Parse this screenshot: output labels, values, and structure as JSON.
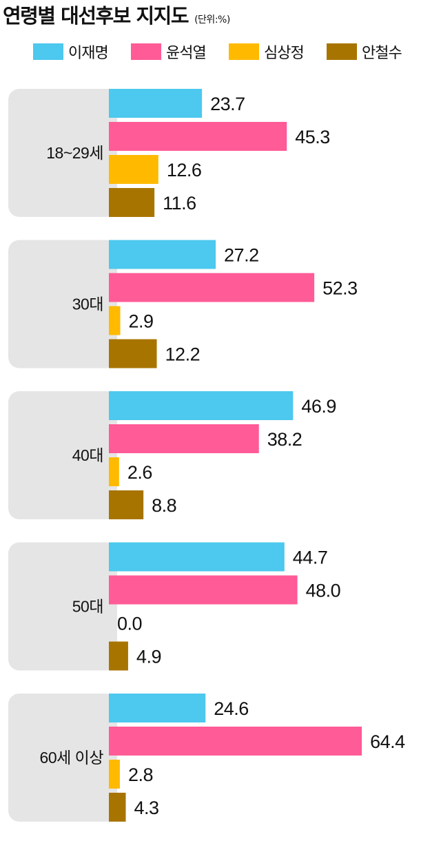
{
  "header": {
    "title": "연령별 대선후보 지지도",
    "unit": "(단위:%)"
  },
  "colors": {
    "이재명": "#4dc8ee",
    "윤석열": "#ff5b96",
    "심상정": "#ffba00",
    "안철수": "#a87400",
    "group_bg": "#e5e5e5"
  },
  "chart_data": {
    "type": "bar",
    "orientation": "horizontal",
    "title": "연령별 대선후보 지지도",
    "unit": "(단위:%)",
    "legend_position": "top",
    "categories": [
      "18~29세",
      "30대",
      "40대",
      "50대",
      "60세 이상"
    ],
    "series": [
      {
        "name": "이재명",
        "values": [
          23.7,
          27.2,
          46.9,
          44.7,
          24.6
        ]
      },
      {
        "name": "윤석열",
        "values": [
          45.3,
          52.3,
          38.2,
          48.0,
          64.4
        ]
      },
      {
        "name": "심상정",
        "values": [
          12.6,
          2.9,
          2.6,
          0.0,
          2.8
        ]
      },
      {
        "name": "안철수",
        "values": [
          11.6,
          12.2,
          8.8,
          4.9,
          4.3
        ]
      }
    ],
    "value_labels": [
      [
        "23.7",
        "45.3",
        "12.6",
        "11.6"
      ],
      [
        "27.2",
        "52.3",
        "2.9",
        "12.2"
      ],
      [
        "46.9",
        "38.2",
        "2.6",
        "8.8"
      ],
      [
        "44.7",
        "48.0",
        "0.0",
        "4.9"
      ],
      [
        "24.6",
        "64.4",
        "2.8",
        "4.3"
      ]
    ],
    "grid": false
  }
}
